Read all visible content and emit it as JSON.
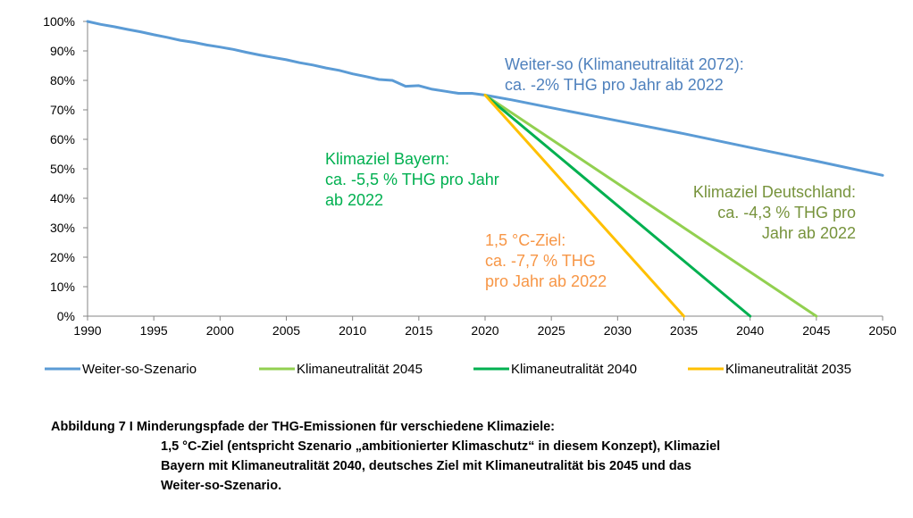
{
  "chart_data": {
    "type": "line",
    "x_range": [
      1990,
      2050
    ],
    "y_range": [
      0,
      100
    ],
    "y_unit": "%",
    "grid": false,
    "x_ticks": [
      "1990",
      "1995",
      "2000",
      "2005",
      "2010",
      "2015",
      "2020",
      "2025",
      "2030",
      "2035",
      "2040",
      "2045",
      "2050"
    ],
    "y_ticks": [
      "0%",
      "10%",
      "20%",
      "30%",
      "40%",
      "50%",
      "60%",
      "70%",
      "80%",
      "90%",
      "100%"
    ],
    "legend_position": "bottom",
    "series": [
      {
        "name": "Weiter-so-Szenario",
        "color": "#5B9BD5",
        "points": [
          [
            1990,
            100
          ],
          [
            1991,
            99
          ],
          [
            1992,
            98.2
          ],
          [
            1993,
            97.3
          ],
          [
            1994,
            96.5
          ],
          [
            1995,
            95.5
          ],
          [
            1996,
            94.6
          ],
          [
            1997,
            93.6
          ],
          [
            1998,
            92.9
          ],
          [
            1999,
            92
          ],
          [
            2000,
            91.3
          ],
          [
            2001,
            90.5
          ],
          [
            2002,
            89.5
          ],
          [
            2003,
            88.6
          ],
          [
            2004,
            87.8
          ],
          [
            2005,
            87
          ],
          [
            2006,
            86
          ],
          [
            2007,
            85.2
          ],
          [
            2008,
            84.2
          ],
          [
            2009,
            83.4
          ],
          [
            2010,
            82.2
          ],
          [
            2011,
            81.3
          ],
          [
            2012,
            80.3
          ],
          [
            2013,
            80
          ],
          [
            2014,
            78
          ],
          [
            2015,
            78.2
          ],
          [
            2016,
            77
          ],
          [
            2017,
            76.3
          ],
          [
            2018,
            75.6
          ],
          [
            2019,
            75.6
          ],
          [
            2020,
            75
          ],
          [
            2022,
            73.4
          ],
          [
            2025,
            70.7
          ],
          [
            2030,
            66.3
          ],
          [
            2035,
            61.9
          ],
          [
            2040,
            57.2
          ],
          [
            2045,
            52.6
          ],
          [
            2050,
            47.8
          ]
        ]
      },
      {
        "name": "Klimaneutralität 2045",
        "color": "#92D050",
        "points": [
          [
            2020,
            75
          ],
          [
            2045,
            0
          ]
        ]
      },
      {
        "name": "Klimaneutralität 2040",
        "color": "#00B050",
        "points": [
          [
            2020,
            75
          ],
          [
            2040,
            0
          ]
        ]
      },
      {
        "name": "Klimaneutralität 2035",
        "color": "#FFC000",
        "points": [
          [
            2020,
            75
          ],
          [
            2035,
            0
          ]
        ]
      }
    ],
    "annotations": [
      {
        "id": "weiter-so",
        "color": "#4F81BD",
        "lines": [
          "Weiter-so (Klimaneutralität 2072):",
          "ca. -2% THG pro Jahr ab 2022"
        ]
      },
      {
        "id": "bayern",
        "color": "#00B050",
        "lines": [
          "Klimaziel Bayern:",
          "ca. -5,5 % THG pro Jahr",
          "ab 2022"
        ]
      },
      {
        "id": "deutschland",
        "color": "#77933C",
        "lines": [
          "Klimaziel Deutschland:",
          "ca. -4,3 % THG pro",
          "Jahr ab 2022"
        ]
      },
      {
        "id": "ziel15",
        "color": "#F79646",
        "lines": [
          "1,5 °C-Ziel:",
          "ca. -7,7 % THG",
          "pro Jahr ab 2022"
        ]
      }
    ]
  },
  "caption": {
    "first_line": "Abbildung 7 I Minderungspfade der THG-Emissionen für verschiedene Klimaziele:",
    "rest": "1,5 °C-Ziel (entspricht Szenario „ambitionierter Klimaschutz“ in diesem Konzept), Klimaziel Bayern mit Klimaneutralität 2040, deutsches Ziel mit Klimaneutralität bis 2045 und das Weiter-so-Szenario."
  }
}
